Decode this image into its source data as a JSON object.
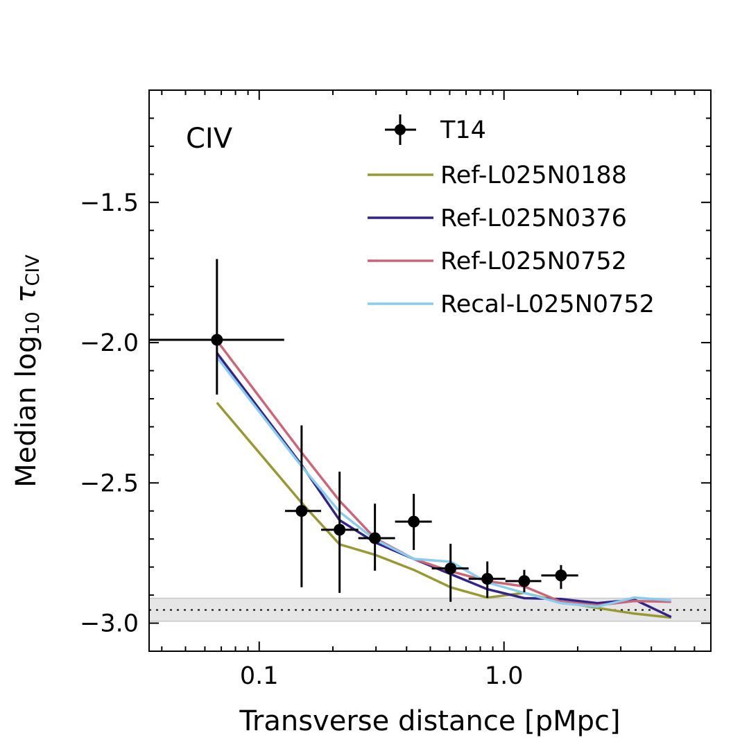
{
  "chart_data": {
    "type": "line",
    "xlabel": "Transverse distance [pMpc]",
    "ylabel": [
      "Median log",
      "10",
      " τ",
      "CIV"
    ],
    "annotation": "CIV",
    "xscale": "log",
    "xlim": [
      0.0355,
      7
    ],
    "ylim": [
      -3.1,
      -1.1
    ],
    "xticks": [
      0.1,
      {
        "value": 1,
        "label": "1.0"
      }
    ],
    "yticks": [
      {
        "value": -3.0,
        "label": "−3.0"
      },
      {
        "value": -2.5,
        "label": "−2.5"
      },
      {
        "value": -2.0,
        "label": "−2.0"
      },
      {
        "value": -1.5,
        "label": "−1.5"
      }
    ],
    "xminor": [
      0.04,
      0.05,
      0.06,
      0.07,
      0.08,
      0.09,
      0.2,
      0.3,
      0.4,
      0.5,
      0.6,
      0.7,
      0.8,
      0.9,
      2,
      3,
      4,
      5,
      6,
      7
    ],
    "yminor": [
      -2.9,
      -2.8,
      -2.7,
      -2.6,
      -2.4,
      -2.3,
      -2.2,
      -2.1,
      -1.9,
      -1.8,
      -1.7,
      -1.6,
      -1.4,
      -1.3,
      -1.2
    ],
    "band": [
      -2.993,
      -2.911
    ],
    "hline": -2.953,
    "observations": {
      "name": "T14",
      "color": "#000000",
      "x": [
        0.0672,
        0.149,
        0.213,
        0.297,
        0.428,
        0.605,
        0.855,
        1.21,
        1.71
      ],
      "x_lo": [
        0.0355,
        0.1275,
        0.179,
        0.254,
        0.359,
        0.507,
        0.717,
        1.013,
        1.42
      ],
      "x_hi": [
        0.1265,
        0.179,
        0.254,
        0.359,
        0.507,
        0.717,
        1.013,
        1.42,
        2.01
      ],
      "values": [
        -1.99,
        -2.6,
        -2.667,
        -2.697,
        -2.638,
        -2.805,
        -2.842,
        -2.85,
        -2.83
      ],
      "yerr_low": [
        0.195,
        0.272,
        0.225,
        0.116,
        0.101,
        0.119,
        0.068,
        0.04,
        0.048
      ],
      "yerr_high": [
        0.288,
        0.305,
        0.207,
        0.123,
        0.099,
        0.088,
        0.062,
        0.04,
        0.037
      ]
    },
    "x": [
      0.0672,
      0.149,
      0.213,
      0.297,
      0.428,
      0.605,
      0.855,
      1.21,
      1.71,
      2.41,
      3.41,
      4.82
    ],
    "series": [
      {
        "name": "Ref-L025N0188",
        "color": "#999933",
        "values": [
          -2.214,
          -2.571,
          -2.719,
          -2.756,
          -2.81,
          -2.872,
          -2.909,
          -2.892,
          -2.924,
          -2.946,
          -2.966,
          -2.98
        ]
      },
      {
        "name": "Ref-L025N0376",
        "color": "#332288",
        "values": [
          -2.037,
          -2.436,
          -2.633,
          -2.712,
          -2.771,
          -2.825,
          -2.879,
          -2.911,
          -2.914,
          -2.929,
          -2.916,
          -2.978
        ]
      },
      {
        "name": "Ref-L025N0752",
        "color": "#CC6677",
        "values": [
          -1.993,
          -2.392,
          -2.564,
          -2.697,
          -2.771,
          -2.815,
          -2.85,
          -2.869,
          -2.924,
          -2.936,
          -2.921,
          -2.924
        ]
      },
      {
        "name": "Recal-L025N0752",
        "color": "#88CCEE",
        "values": [
          -2.052,
          -2.441,
          -2.603,
          -2.702,
          -2.771,
          -2.781,
          -2.855,
          -2.892,
          -2.929,
          -2.941,
          -2.909,
          -2.919
        ]
      }
    ]
  }
}
